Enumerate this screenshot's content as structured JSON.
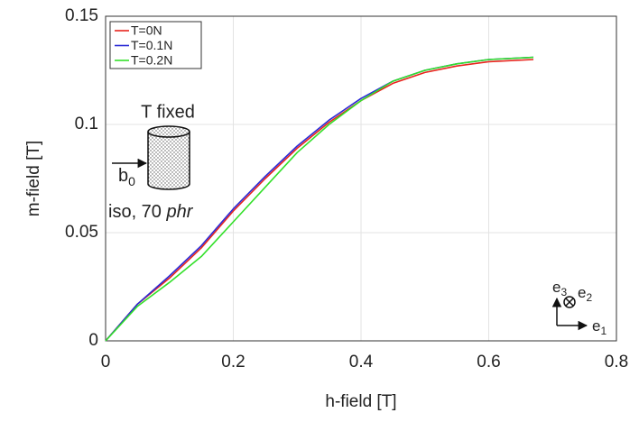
{
  "chart_data": {
    "type": "line",
    "xlabel": "h-field [T]",
    "ylabel": "m-field [T]",
    "xlim": [
      0,
      0.8
    ],
    "ylim": [
      0,
      0.15
    ],
    "xticks": [
      0,
      0.2,
      0.4,
      0.6,
      0.8
    ],
    "yticks": [
      0,
      0.05,
      0.1,
      0.15
    ],
    "grid": true,
    "legend": "upper left",
    "x": [
      0,
      0.05,
      0.1,
      0.15,
      0.2,
      0.25,
      0.3,
      0.35,
      0.4,
      0.45,
      0.5,
      0.55,
      0.6,
      0.67
    ],
    "series": [
      {
        "name": "T=0N",
        "color": "#e8231c",
        "values": [
          0,
          0.017,
          0.029,
          0.043,
          0.06,
          0.075,
          0.089,
          0.101,
          0.111,
          0.119,
          0.124,
          0.127,
          0.129,
          0.13
        ]
      },
      {
        "name": "T=0.1N",
        "color": "#2b2bd6",
        "values": [
          0,
          0.017,
          0.03,
          0.044,
          0.061,
          0.076,
          0.09,
          0.102,
          0.112,
          0.12,
          0.125,
          0.128,
          0.13,
          0.131
        ]
      },
      {
        "name": "T=0.2N",
        "color": "#33e02a",
        "values": [
          0,
          0.016,
          0.027,
          0.039,
          0.055,
          0.071,
          0.087,
          0.1,
          0.111,
          0.12,
          0.125,
          0.128,
          0.13,
          0.131
        ]
      }
    ],
    "annotations": {
      "constraint": "T fixed",
      "field": [
        "b",
        "0"
      ],
      "material": [
        "iso, 70 ",
        "phr"
      ],
      "axes": {
        "e3": [
          "e",
          "3"
        ],
        "e2": [
          "e",
          "2"
        ],
        "e1": [
          "e",
          "1"
        ]
      }
    }
  }
}
